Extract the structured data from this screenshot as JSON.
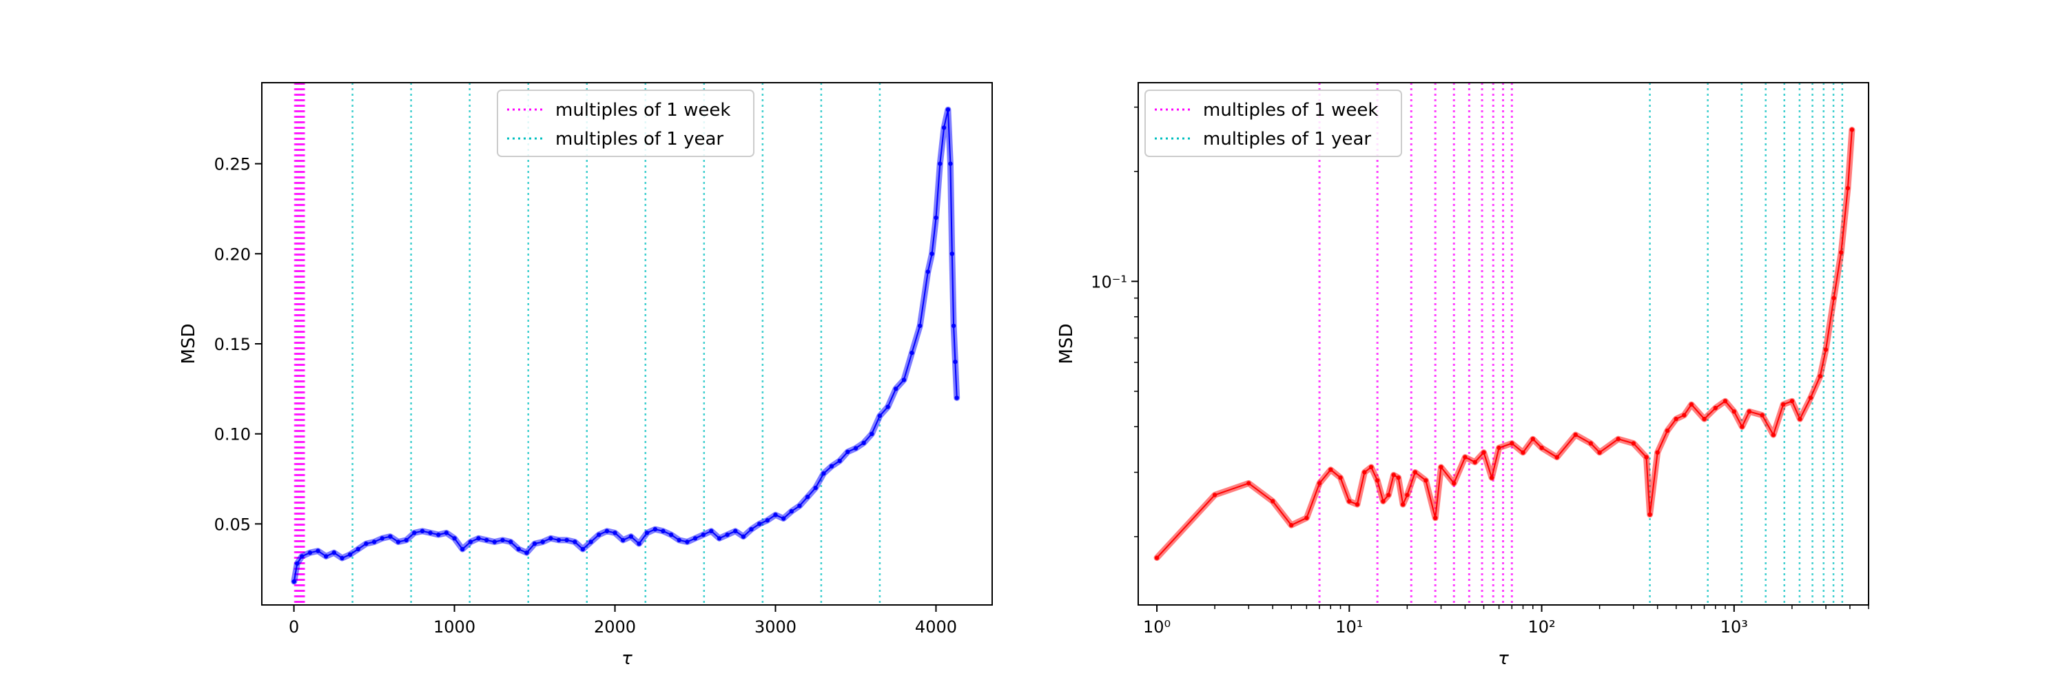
{
  "chart_data": [
    {
      "type": "line",
      "scale": "linear",
      "xlabel": "τ",
      "ylabel": "MSD",
      "xlim": [
        -200,
        4350
      ],
      "ylim": [
        0.005,
        0.295
      ],
      "xticks": [
        0,
        1000,
        2000,
        3000,
        4000
      ],
      "xtick_labels": [
        "0",
        "1000",
        "2000",
        "3000",
        "4000"
      ],
      "yticks": [
        0.05,
        0.1,
        0.15,
        0.2,
        0.25
      ],
      "ytick_labels": [
        "0.05",
        "0.10",
        "0.15",
        "0.20",
        "0.25"
      ],
      "grid": false,
      "legend_position": "top-center",
      "series": [
        {
          "color": "#0000ff",
          "x": [
            1,
            20,
            50,
            100,
            150,
            200,
            250,
            300,
            350,
            400,
            450,
            500,
            550,
            600,
            650,
            700,
            750,
            800,
            850,
            900,
            950,
            1000,
            1050,
            1100,
            1150,
            1200,
            1250,
            1300,
            1350,
            1400,
            1450,
            1500,
            1550,
            1600,
            1650,
            1700,
            1750,
            1800,
            1850,
            1900,
            1950,
            2000,
            2050,
            2100,
            2150,
            2200,
            2250,
            2300,
            2350,
            2400,
            2450,
            2500,
            2550,
            2600,
            2650,
            2700,
            2750,
            2800,
            2850,
            2900,
            2950,
            3000,
            3050,
            3100,
            3150,
            3200,
            3250,
            3300,
            3350,
            3400,
            3450,
            3500,
            3550,
            3600,
            3650,
            3700,
            3750,
            3800,
            3850,
            3900,
            3950,
            3975,
            4000,
            4025,
            4050,
            4075,
            4090,
            4100,
            4110,
            4120,
            4130
          ],
          "y": [
            0.018,
            0.028,
            0.032,
            0.034,
            0.035,
            0.032,
            0.034,
            0.031,
            0.033,
            0.036,
            0.039,
            0.04,
            0.042,
            0.043,
            0.04,
            0.041,
            0.045,
            0.046,
            0.045,
            0.044,
            0.045,
            0.042,
            0.036,
            0.04,
            0.042,
            0.041,
            0.04,
            0.041,
            0.04,
            0.036,
            0.034,
            0.039,
            0.04,
            0.042,
            0.041,
            0.041,
            0.04,
            0.036,
            0.04,
            0.044,
            0.046,
            0.045,
            0.041,
            0.043,
            0.039,
            0.045,
            0.047,
            0.046,
            0.044,
            0.041,
            0.04,
            0.042,
            0.044,
            0.046,
            0.042,
            0.044,
            0.046,
            0.043,
            0.047,
            0.05,
            0.052,
            0.055,
            0.053,
            0.057,
            0.06,
            0.065,
            0.07,
            0.078,
            0.082,
            0.085,
            0.09,
            0.092,
            0.095,
            0.1,
            0.11,
            0.115,
            0.125,
            0.13,
            0.145,
            0.16,
            0.19,
            0.2,
            0.22,
            0.25,
            0.27,
            0.28,
            0.25,
            0.2,
            0.16,
            0.14,
            0.12
          ]
        }
      ],
      "vlines": [
        {
          "label": "multiples of 1 week",
          "color": "#ff00ff",
          "positions": [
            7,
            14,
            21,
            28,
            35,
            42,
            49,
            56,
            63
          ]
        },
        {
          "label": "multiples of 1 year",
          "color": "#00bfbf",
          "positions": [
            365,
            730,
            1095,
            1460,
            1825,
            2190,
            2555,
            2920,
            3285,
            3650
          ]
        }
      ],
      "legend": [
        "multiples of 1 week",
        "multiples of 1 year"
      ]
    },
    {
      "type": "line",
      "scale": "log",
      "xlabel": "τ",
      "ylabel": "MSD",
      "xlim": [
        0.8,
        5000
      ],
      "ylim": [
        0.013,
        0.35
      ],
      "xticks": [
        1,
        10,
        100,
        1000
      ],
      "xtick_labels": [
        "10⁰",
        "10¹",
        "10²",
        "10³"
      ],
      "yticks": [
        0.1
      ],
      "ytick_labels": [
        "10⁻¹"
      ],
      "grid": false,
      "legend_position": "top-left",
      "series": [
        {
          "color": "#ff0000",
          "x": [
            1,
            2,
            3,
            4,
            5,
            6,
            7,
            8,
            9,
            10,
            11,
            12,
            13,
            14,
            15,
            16,
            17,
            18,
            19,
            20,
            22,
            25,
            28,
            30,
            35,
            40,
            45,
            50,
            55,
            60,
            70,
            80,
            90,
            100,
            120,
            150,
            180,
            200,
            250,
            300,
            350,
            365,
            400,
            450,
            500,
            550,
            600,
            700,
            800,
            900,
            1000,
            1100,
            1200,
            1400,
            1600,
            1800,
            2000,
            2200,
            2500,
            2800,
            3000,
            3300,
            3600,
            3900,
            4100
          ],
          "y": [
            0.0175,
            0.026,
            0.028,
            0.025,
            0.0215,
            0.0225,
            0.028,
            0.0305,
            0.029,
            0.025,
            0.0245,
            0.03,
            0.031,
            0.0285,
            0.025,
            0.026,
            0.0295,
            0.029,
            0.0245,
            0.026,
            0.03,
            0.0285,
            0.0225,
            0.031,
            0.028,
            0.033,
            0.032,
            0.034,
            0.029,
            0.035,
            0.036,
            0.034,
            0.037,
            0.035,
            0.033,
            0.038,
            0.036,
            0.034,
            0.037,
            0.036,
            0.033,
            0.023,
            0.034,
            0.039,
            0.042,
            0.043,
            0.046,
            0.042,
            0.045,
            0.047,
            0.044,
            0.04,
            0.044,
            0.043,
            0.038,
            0.046,
            0.047,
            0.042,
            0.048,
            0.055,
            0.065,
            0.09,
            0.12,
            0.18,
            0.26
          ]
        }
      ],
      "vlines": [
        {
          "label": "multiples of 1 week",
          "color": "#ff00ff",
          "positions": [
            7,
            14,
            21,
            28,
            35,
            42,
            49,
            56,
            63,
            70
          ]
        },
        {
          "label": "multiples of 1 year",
          "color": "#00bfbf",
          "positions": [
            365,
            730,
            1095,
            1460,
            1825,
            2190,
            2555,
            2920,
            3285,
            3650
          ]
        }
      ],
      "legend": [
        "multiples of 1 week",
        "multiples of 1 year"
      ]
    }
  ]
}
